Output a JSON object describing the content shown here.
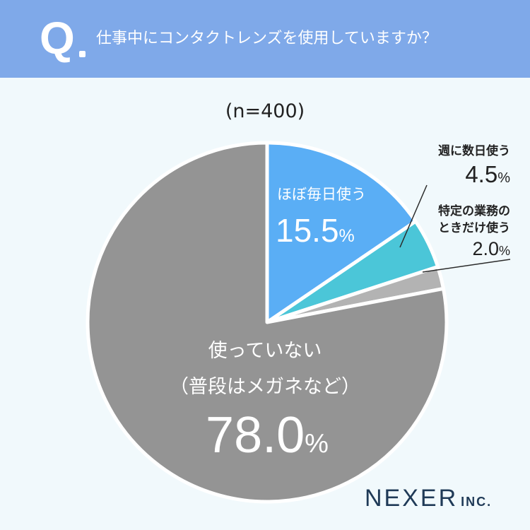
{
  "header": {
    "q_mark": "Q",
    "question": "仕事中にコンタクトレンズを使用していますか？"
  },
  "sample_label": "(n=400)",
  "chart_data": {
    "type": "pie",
    "slices": [
      {
        "label": "ほぼ毎日使う",
        "value": 15.5,
        "color": "#5aaef5"
      },
      {
        "label": "週に数日使う",
        "value": 4.5,
        "color": "#4bc6d8"
      },
      {
        "label": "特定の業務のときだけ使う",
        "value": 2.0,
        "color": "#b3b3b3"
      },
      {
        "label": "使っていない（普段はメガネなど）",
        "value": 78.0,
        "color": "#949494"
      }
    ],
    "unit": "%"
  },
  "labels": {
    "daily_line1": "ほぼ毎日使う",
    "daily_value": "15.5",
    "weekly_line1": "週に数日使う",
    "weekly_value": "4.5",
    "specific_line1": "特定の業務の",
    "specific_line2": "ときだけ使う",
    "specific_value": "2.0",
    "none_line1": "使っていない",
    "none_line2": "（普段はメガネなど）",
    "none_value": "78.0",
    "percent": "%"
  },
  "brand": {
    "main": "NEXER",
    "sub": "INC."
  }
}
